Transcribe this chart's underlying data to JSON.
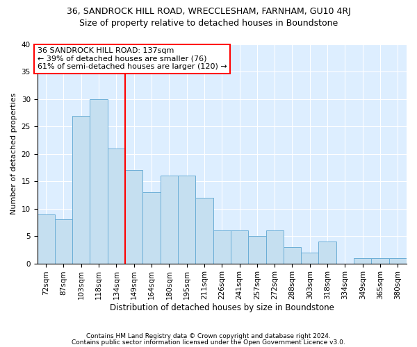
{
  "title1": "36, SANDROCK HILL ROAD, WRECCLESHAM, FARNHAM, GU10 4RJ",
  "title2": "Size of property relative to detached houses in Boundstone",
  "xlabel": "Distribution of detached houses by size in Boundstone",
  "ylabel": "Number of detached properties",
  "categories": [
    "72sqm",
    "87sqm",
    "103sqm",
    "118sqm",
    "134sqm",
    "149sqm",
    "164sqm",
    "180sqm",
    "195sqm",
    "211sqm",
    "226sqm",
    "241sqm",
    "257sqm",
    "272sqm",
    "288sqm",
    "303sqm",
    "318sqm",
    "334sqm",
    "349sqm",
    "365sqm",
    "380sqm"
  ],
  "values": [
    9,
    8,
    27,
    30,
    21,
    17,
    13,
    16,
    16,
    12,
    6,
    6,
    5,
    6,
    3,
    2,
    4,
    0,
    1,
    1,
    1
  ],
  "bar_color": "#c5dff0",
  "bar_edge_color": "#6baed6",
  "red_line_x": 4.5,
  "annotation_line1": "36 SANDROCK HILL ROAD: 137sqm",
  "annotation_line2": "← 39% of detached houses are smaller (76)",
  "annotation_line3": "61% of semi-detached houses are larger (120) →",
  "ylim": [
    0,
    40
  ],
  "yticks": [
    0,
    5,
    10,
    15,
    20,
    25,
    30,
    35,
    40
  ],
  "footnote1": "Contains HM Land Registry data © Crown copyright and database right 2024.",
  "footnote2": "Contains public sector information licensed under the Open Government Licence v3.0.",
  "background_color": "#ddeeff",
  "title1_fontsize": 9,
  "title2_fontsize": 9,
  "xlabel_fontsize": 8.5,
  "ylabel_fontsize": 8,
  "tick_fontsize": 7.5,
  "annotation_fontsize": 8,
  "footnote_fontsize": 6.5
}
